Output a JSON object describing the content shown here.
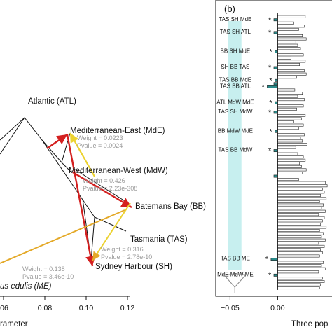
{
  "panel_b_label": "(b)",
  "chart_data": [
    {
      "type": "diagram",
      "panel": "a",
      "xlabel": "rameter",
      "x_ticks": [
        "06",
        "0.08",
        "0.10",
        "0.12"
      ],
      "nodes": [
        {
          "id": "ATL",
          "label": "Atlantic (ATL)"
        },
        {
          "id": "MdE",
          "label": "Mediterranean-East (MdE)"
        },
        {
          "id": "MdW",
          "label": "Mediterranean-West (MdW)"
        },
        {
          "id": "BB",
          "label": "Batemans Bay (BB)"
        },
        {
          "id": "TAS",
          "label": "Tasmania (TAS)"
        },
        {
          "id": "SH",
          "label": "Sydney Harbour (SH)"
        },
        {
          "id": "ME",
          "label": "us edulis (ME)"
        }
      ],
      "migration_edges": [
        {
          "weight_label": "Weight = 0.0223",
          "pvalue_label": "Pvalue = 0.0024",
          "color": "#ecd230"
        },
        {
          "weight_label": "Weight = 0.426",
          "pvalue_label": "Pvalue = 2.23e-308",
          "color": "#d42020"
        },
        {
          "weight_label": "Weight = 0.316",
          "pvalue_label": "Pvalue = 2.78e-10",
          "color": "#d42020"
        },
        {
          "weight_label": "Weight = 0.138",
          "pvalue_label": "Pvalue = 3.46e-10",
          "color": "#e4a928"
        }
      ]
    },
    {
      "type": "bar",
      "panel": "b",
      "orientation": "horizontal",
      "xlabel": "Three pop",
      "x_ticks": [
        "−0.05",
        "0.00"
      ],
      "xlim": [
        -0.065,
        0.06
      ],
      "highlight_color": "#c7efef",
      "significant_color": "#2a8a8a",
      "values": [
        0.029,
        -0.004,
        0.017,
        0.028,
        0.022,
        -0.004,
        0.026,
        0.03,
        0.019,
        0.021,
        0.024,
        -0.003,
        0.027,
        0.014,
        0.029,
        0.023,
        -0.004,
        0.028,
        0.03,
        0.02,
        -0.003,
        -0.004,
        -0.011,
        0.018,
        0.026,
        0.021,
        0.028,
        -0.003,
        0.027,
        0.02,
        -0.004,
        0.029,
        0.025,
        0.017,
        0.027,
        0.022,
        -0.003,
        0.028,
        0.024,
        0.026,
        0.031,
        0.019,
        -0.004,
        0.021,
        0.027,
        0.029,
        0.023,
        0.025,
        0.03,
        0.026,
        -0.004,
        0.022,
        0.05,
        0.052,
        0.047,
        0.049,
        0.045,
        0.051,
        0.044,
        0.048,
        0.046,
        0.05,
        0.043,
        0.049,
        0.047,
        0.045,
        0.051,
        0.044,
        0.048,
        0.046,
        0.05,
        0.043,
        0.049,
        0.045,
        0.047,
        0.044,
        -0.007,
        0.048,
        0.046,
        0.05,
        0.043,
        -0.004,
        0.047,
        0.049,
        0.045,
        0.044
      ],
      "labeled_rows": [
        {
          "index": 1,
          "label": "TAS  SH  MdE",
          "star": "*"
        },
        {
          "index": 5,
          "label": "TAS  SH  ATL",
          "star": "*"
        },
        {
          "index": 11,
          "label": "BB   SH  MdE",
          "star": "*"
        },
        {
          "index": 16,
          "label": "SH   BB  TAS",
          "star": "*"
        },
        {
          "index": 20,
          "label": "TAS  BB  MdE",
          "star": "*"
        },
        {
          "index": 22,
          "label": "TAS  BB  ATL",
          "star": "*"
        },
        {
          "index": 27,
          "label": "ATL MdW MdE",
          "star": "*"
        },
        {
          "index": 30,
          "label": "TAS  SH  MdW",
          "star": "*"
        },
        {
          "index": 36,
          "label": "BB  MdW MdE",
          "star": "*"
        },
        {
          "index": 42,
          "label": "TAS  BB  MdW",
          "star": "*"
        },
        {
          "index": 76,
          "label": "TAS  BB  ME",
          "star": "*"
        },
        {
          "index": 81,
          "label": "MdE MdW ME",
          "star": "*"
        }
      ]
    }
  ]
}
